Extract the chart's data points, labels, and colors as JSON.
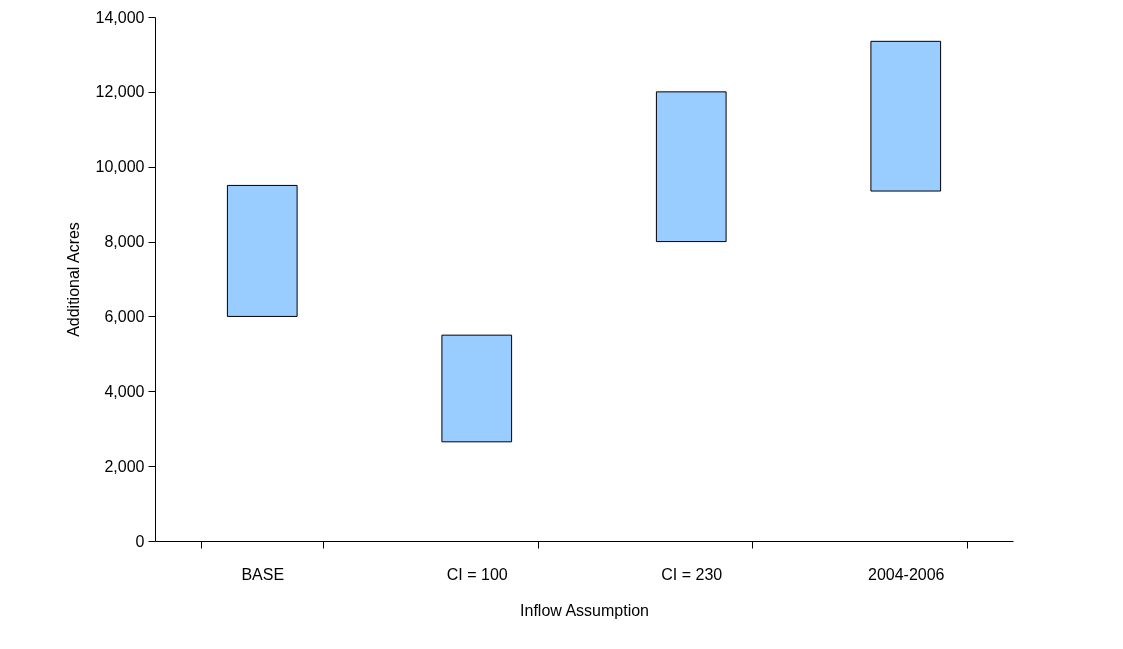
{
  "chart_data": {
    "type": "bar",
    "categories": [
      "BASE",
      "CI = 100",
      "CI = 230",
      "2004-2006"
    ],
    "base": [
      6000,
      2650,
      8000,
      9350
    ],
    "values": [
      3500,
      2850,
      4000,
      4000
    ],
    "color": "#99ccff",
    "xlabel": "Inflow Assumption",
    "ylabel": "Additional Acres",
    "ylim": [
      0,
      14000
    ],
    "yticks": [
      0,
      {
        "value": 2000,
        "label": "2,000"
      },
      {
        "value": 4000,
        "label": "4,000"
      },
      {
        "value": 6000,
        "label": "6,000"
      },
      {
        "value": 8000,
        "label": "8,000"
      },
      {
        "value": 10000,
        "label": "10,000"
      },
      {
        "value": 12000,
        "label": "12,000"
      },
      {
        "value": 14000,
        "label": "14,000"
      }
    ],
    "grid": false
  }
}
